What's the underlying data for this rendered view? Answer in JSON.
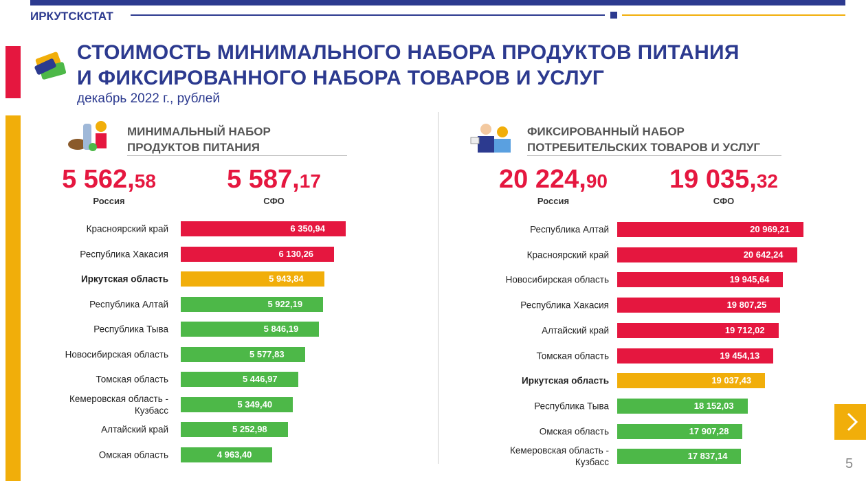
{
  "header": {
    "brand": "ИРКУТСКСТАТ",
    "title": [
      "СТОИМОСТЬ МИНИМАЛЬНОГО НАБОРА ПРОДУКТОВ ПИТАНИЯ",
      "И ФИКСИРОВАННОГО НАБОРА ТОВАРОВ И УСЛУГ"
    ],
    "subtitle": "декабрь 2022 г., рублей"
  },
  "page_number": "5",
  "chart_data": [
    {
      "type": "bar",
      "orientation": "horizontal",
      "title": [
        "МИНИМАЛЬНЫЙ НАБОР",
        "ПРОДУКТОВ ПИТАНИЯ"
      ],
      "summary": [
        {
          "name": "Россия",
          "value": 5562.58,
          "value_label": "5 562,58"
        },
        {
          "name": "СФО",
          "value": 5587.17,
          "value_label": "5 587,17"
        }
      ],
      "categories": [
        "Красноярский край",
        "Республика Хакасия",
        "Иркутская область",
        "Республика Алтай",
        "Республика Тыва",
        "Новосибирская область",
        "Томская область",
        "Кемеровская область - Кузбасс",
        "Алтайский край",
        "Омская область"
      ],
      "values": [
        6350.94,
        6130.26,
        5943.84,
        5922.19,
        5846.19,
        5577.83,
        5446.97,
        5349.4,
        5252.98,
        4963.4
      ],
      "value_labels": [
        "6 350,94",
        "6 130,26",
        "5 943,84",
        "5 922,19",
        "5 846,19",
        "5 577,83",
        "5 446,97",
        "5 349,40",
        "5 252,98",
        "4 963,40"
      ],
      "colors": [
        "#e5173f",
        "#e5173f",
        "#f1ae0a",
        "#4db848",
        "#4db848",
        "#4db848",
        "#4db848",
        "#4db848",
        "#4db848",
        "#4db848"
      ]
    },
    {
      "type": "bar",
      "orientation": "horizontal",
      "title": [
        "ФИКСИРОВАННЫЙ НАБОР",
        "ПОТРЕБИТЕЛЬСКИХ ТОВАРОВ И УСЛУГ"
      ],
      "summary": [
        {
          "name": "Россия",
          "value": 20224.9,
          "value_label": "20 224,90"
        },
        {
          "name": "СФО",
          "value": 19035.32,
          "value_label": "19 035,32"
        }
      ],
      "categories": [
        "Республика Алтай",
        "Красноярский край",
        "Новосибирская область",
        "Республика Хакасия",
        "Алтайский край",
        "Томская область",
        "Иркутская область",
        "Республика Тыва",
        "Омская область",
        "Кемеровская область - Кузбасс"
      ],
      "values": [
        20969.21,
        20642.24,
        19945.64,
        19807.25,
        19712.02,
        19454.13,
        19037.43,
        18152.03,
        17907.28,
        17837.14
      ],
      "value_labels": [
        "20 969,21",
        "20 642,24",
        "19 945,64",
        "19 807,25",
        "19 712,02",
        "19 454,13",
        "19 037,43",
        "18 152,03",
        "17 907,28",
        "17 837,14"
      ],
      "colors": [
        "#e5173f",
        "#e5173f",
        "#e5173f",
        "#e5173f",
        "#e5173f",
        "#e5173f",
        "#f1ae0a",
        "#4db848",
        "#4db848",
        "#4db848"
      ]
    }
  ]
}
